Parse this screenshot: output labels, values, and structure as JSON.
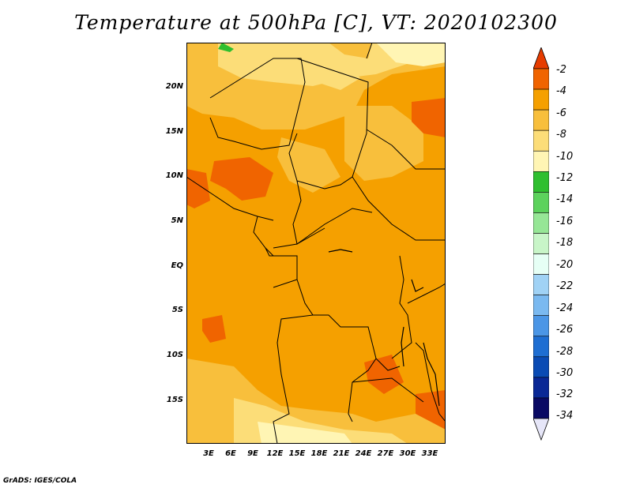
{
  "title": "Temperature at 500hPa [C], VT: 2020102300",
  "credit": "GrADS: IGES/COLA",
  "lat_labels": [
    "20N",
    "15N",
    "10N",
    "5N",
    "EQ",
    "5S",
    "10S",
    "15S"
  ],
  "lon_labels": [
    "3E",
    "6E",
    "9E",
    "12E",
    "15E",
    "18E",
    "21E",
    "24E",
    "27E",
    "30E",
    "33E"
  ],
  "colorbar": {
    "labels": [
      "-2",
      "-4",
      "-6",
      "-8",
      "-10",
      "-12",
      "-14",
      "-16",
      "-18",
      "-20",
      "-22",
      "-24",
      "-26",
      "-28",
      "-30",
      "-32",
      "-34"
    ],
    "colors": [
      "#e63c00",
      "#f06400",
      "#f5a000",
      "#f8bf3c",
      "#fcdd78",
      "#fff5b4",
      "#2fbf2f",
      "#5cd25c",
      "#96e696",
      "#c8f5c8",
      "#e6fff5",
      "#a0d2f5",
      "#7ab9f0",
      "#4b96e6",
      "#1e6ed2",
      "#0a4bb4",
      "#0a2896",
      "#0a0a64",
      "#e6e6f8"
    ]
  },
  "map": {
    "dominant_color": "#f5a000",
    "colors": {
      "warm": "#f06400",
      "mid": "#f5a000",
      "cool": "#f8bf3c",
      "cooler": "#fcdd78",
      "coolest": "#fff5b4",
      "green": "#2fbf2f"
    }
  }
}
